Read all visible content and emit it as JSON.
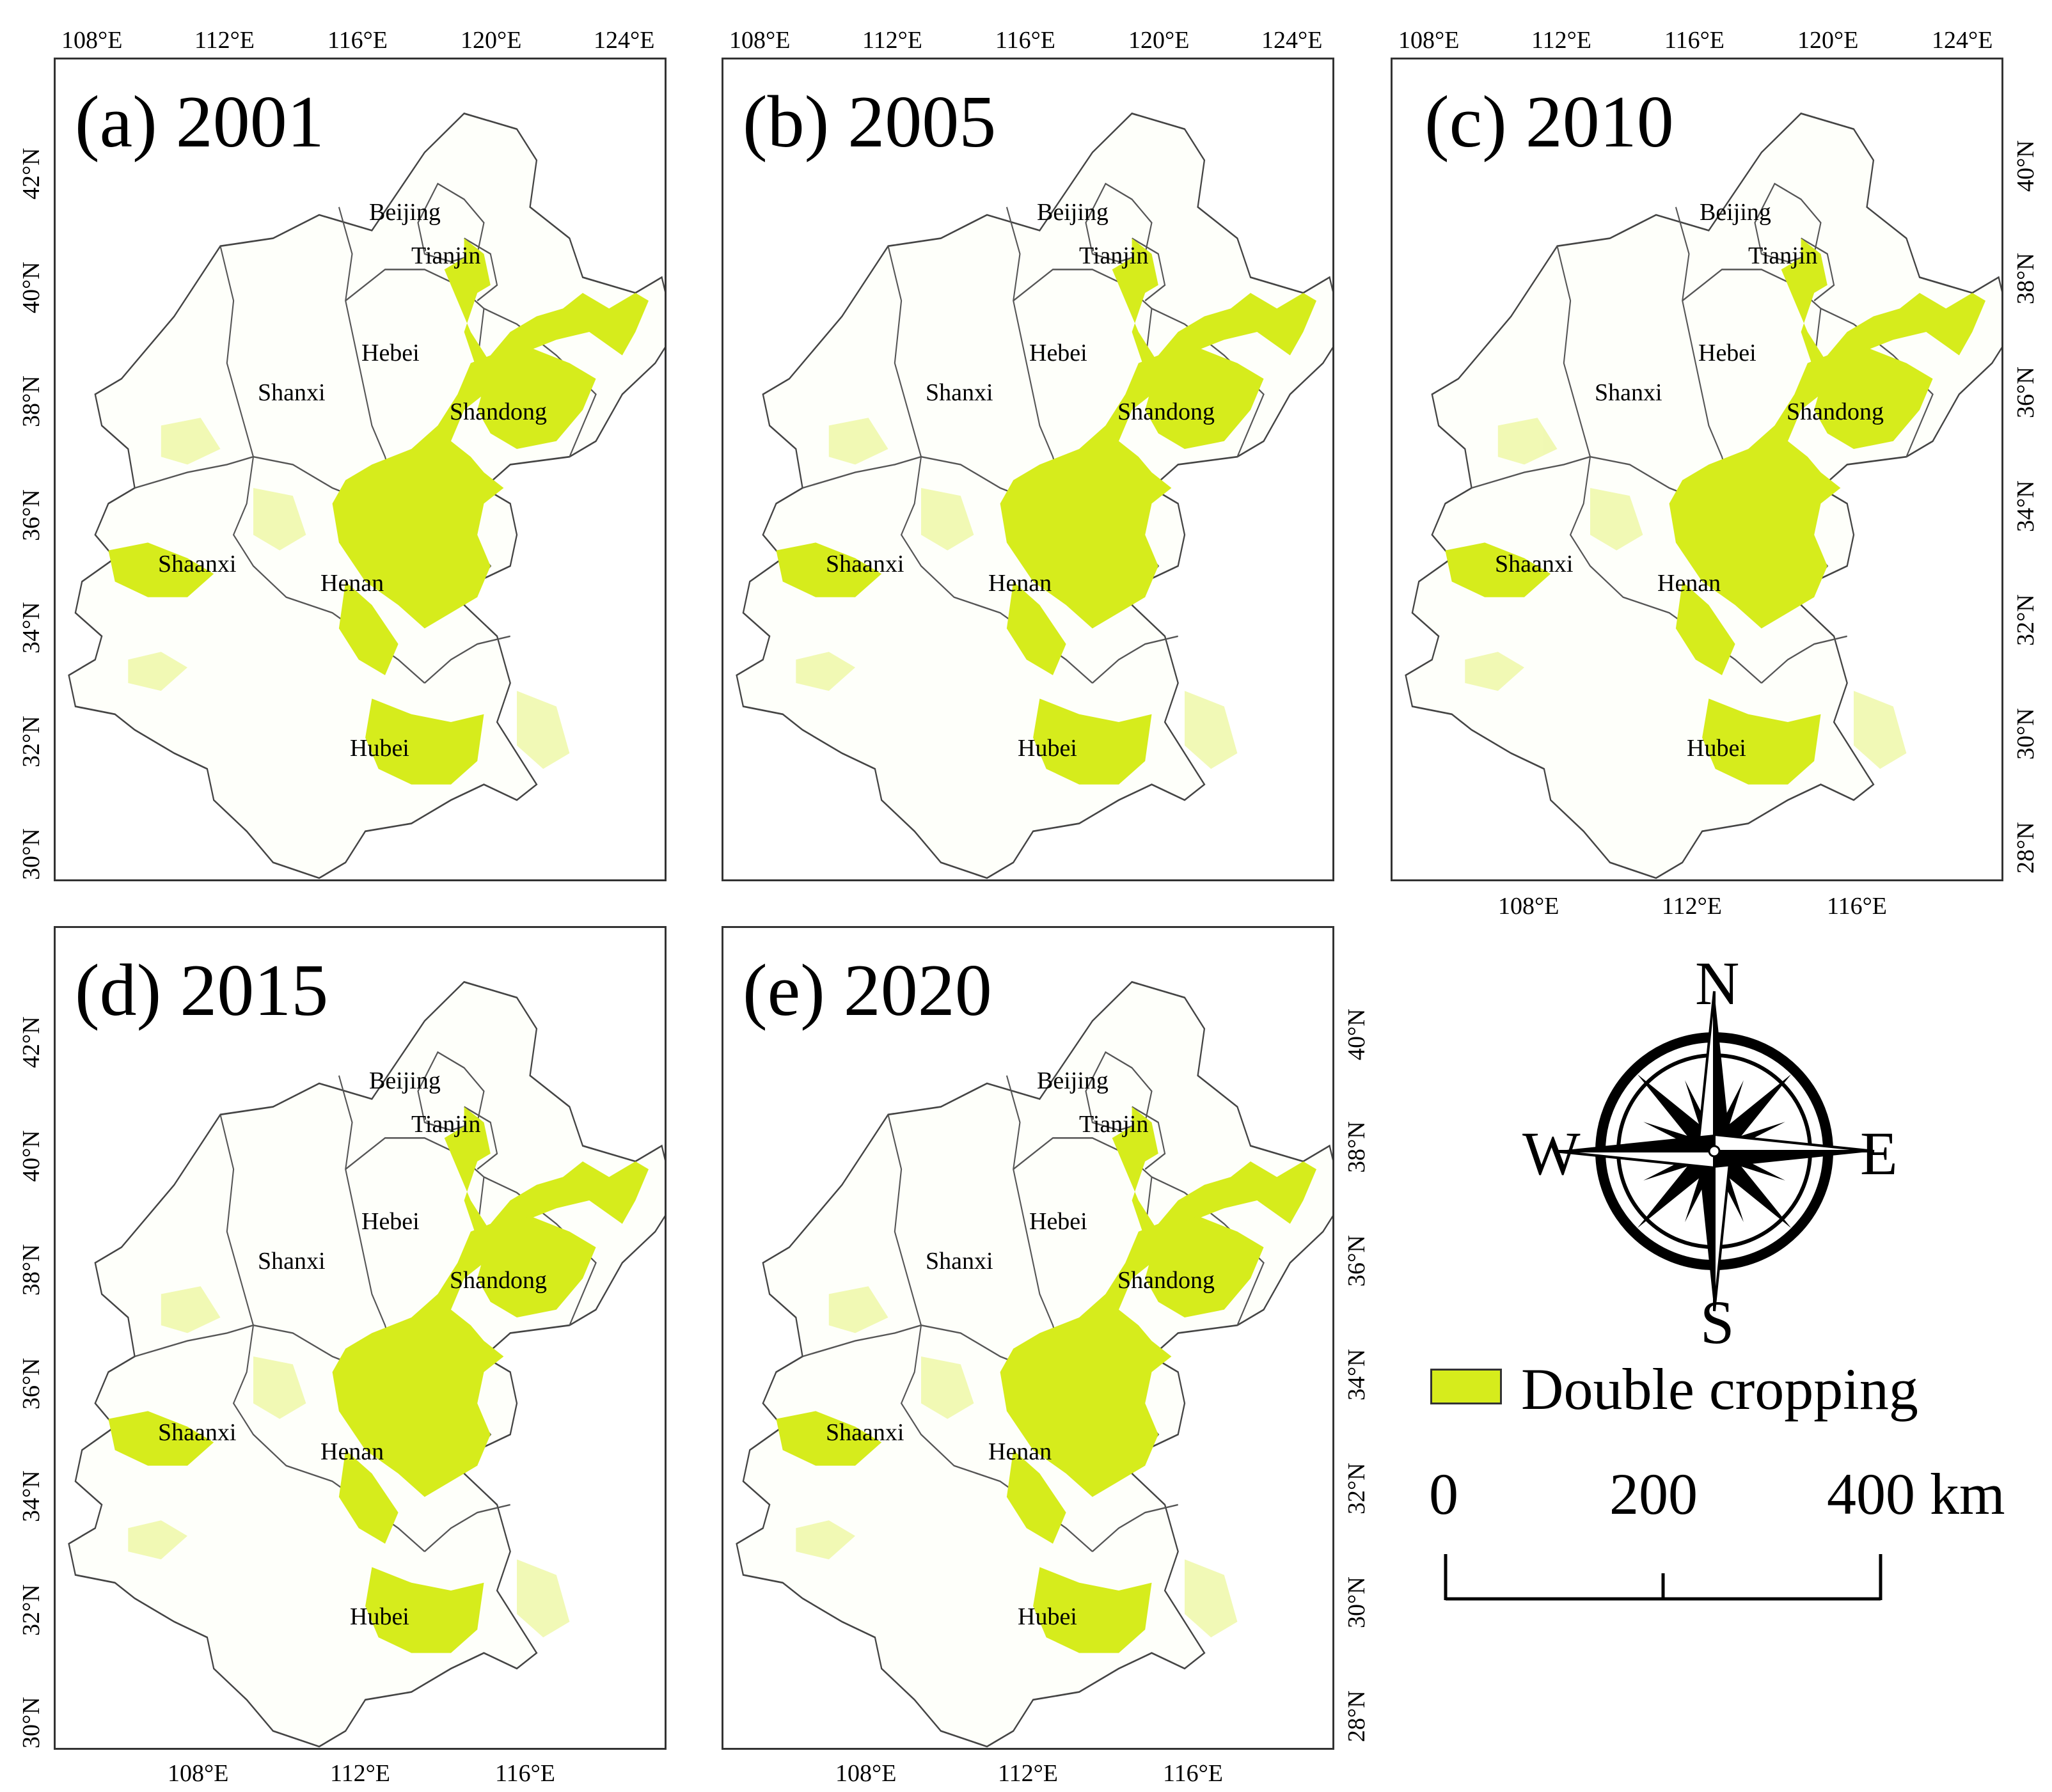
{
  "panels": [
    {
      "title": "(a) 2001"
    },
    {
      "title": "(b) 2005"
    },
    {
      "title": "(c) 2010"
    },
    {
      "title": "(d) 2015"
    },
    {
      "title": "(e) 2020"
    }
  ],
  "top_axis_labels": [
    "108°E",
    "112°E",
    "116°E",
    "120°E",
    "124°E"
  ],
  "left_axis_labels": [
    "30°N",
    "32°N",
    "34°N",
    "36°N",
    "38°N",
    "40°N",
    "42°N"
  ],
  "right_axis_labels": [
    "28°N",
    "30°N",
    "32°N",
    "34°N",
    "36°N",
    "38°N",
    "40°N"
  ],
  "bottom_axis_labels": [
    "108°E",
    "112°E",
    "116°E"
  ],
  "provinces": {
    "beijing": "Beijing",
    "tianjin": "Tianjin",
    "hebei": "Hebei",
    "shanxi": "Shanxi",
    "shandong": "Shandong",
    "shaanxi": "Shaanxi",
    "henan": "Henan",
    "hubei": "Hubei"
  },
  "compass": {
    "n": "N",
    "s": "S",
    "e": "E",
    "w": "W"
  },
  "legend": {
    "label": "Double cropping",
    "color": "#d6ec1c"
  },
  "scale_bar": {
    "labels": [
      "0",
      "200",
      "400 km"
    ]
  }
}
